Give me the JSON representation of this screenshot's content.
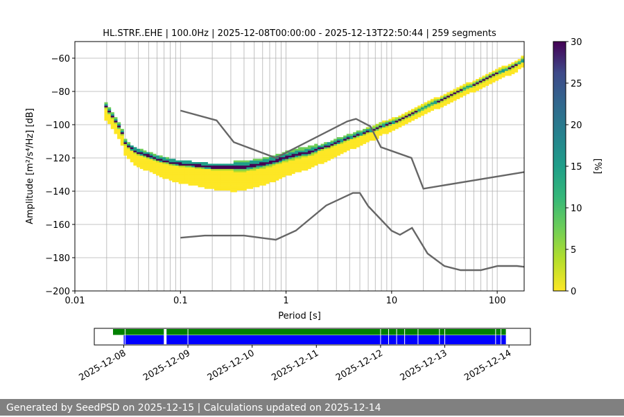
{
  "chart_data": {
    "type": "heatmap",
    "title": "HL.STRF..EHE | 100.0Hz | 2025-12-08T00:00:00 - 2025-12-13T22:50:44 | 259 segments",
    "xlabel": "Period [s]",
    "ylabel": "Amplitude [m²/s⁴/Hz] [dB]",
    "x_scale": "log",
    "xlim": [
      0.01,
      180
    ],
    "ylim": [
      -200,
      -50
    ],
    "xticks": [
      {
        "v": 0.01,
        "label": "0.01"
      },
      {
        "v": 0.1,
        "label": "0.1"
      },
      {
        "v": 1,
        "label": "1"
      },
      {
        "v": 10,
        "label": "10"
      },
      {
        "v": 100,
        "label": "100"
      }
    ],
    "yticks": [
      -60,
      -80,
      -100,
      -120,
      -140,
      -160,
      -180,
      -200
    ],
    "grid": true,
    "colorbar": {
      "label": "[%]",
      "min": 0,
      "max": 30,
      "ticks": [
        0,
        5,
        10,
        15,
        20,
        25,
        30
      ],
      "colormap": "viridis_r"
    },
    "psd_mode_curve": [
      [
        0.019,
        -87
      ],
      [
        0.02,
        -90
      ],
      [
        0.022,
        -94
      ],
      [
        0.025,
        -99
      ],
      [
        0.028,
        -105
      ],
      [
        0.03,
        -111
      ],
      [
        0.035,
        -115
      ],
      [
        0.04,
        -117
      ],
      [
        0.05,
        -119
      ],
      [
        0.06,
        -121
      ],
      [
        0.07,
        -122
      ],
      [
        0.08,
        -123
      ],
      [
        0.1,
        -124
      ],
      [
        0.15,
        -125
      ],
      [
        0.2,
        -126
      ],
      [
        0.3,
        -126
      ],
      [
        0.4,
        -126
      ],
      [
        0.5,
        -125
      ],
      [
        0.6,
        -124
      ],
      [
        0.7,
        -123
      ],
      [
        0.8,
        -122
      ],
      [
        1.0,
        -120
      ],
      [
        1.3,
        -118
      ],
      [
        1.6,
        -117
      ],
      [
        2.0,
        -115
      ],
      [
        2.5,
        -113
      ],
      [
        3.0,
        -111
      ],
      [
        4.0,
        -108
      ],
      [
        5.0,
        -106
      ],
      [
        6.0,
        -104
      ],
      [
        7.0,
        -103
      ],
      [
        8.0,
        -101
      ],
      [
        10,
        -99
      ],
      [
        12,
        -97
      ],
      [
        15,
        -94
      ],
      [
        20,
        -90
      ],
      [
        25,
        -87
      ],
      [
        30,
        -85
      ],
      [
        40,
        -81
      ],
      [
        50,
        -78
      ],
      [
        60,
        -76
      ],
      [
        70,
        -74
      ],
      [
        80,
        -72
      ],
      [
        100,
        -69
      ],
      [
        120,
        -67
      ],
      [
        150,
        -64
      ],
      [
        180,
        -61
      ]
    ],
    "nhnm": [
      [
        0.1,
        -91.5
      ],
      [
        0.22,
        -97.4
      ],
      [
        0.32,
        -110.5
      ],
      [
        0.8,
        -120
      ],
      [
        3.8,
        -98
      ],
      [
        4.6,
        -96.5
      ],
      [
        6.3,
        -101
      ],
      [
        7.9,
        -113.5
      ],
      [
        15.4,
        -120
      ],
      [
        20,
        -138.5
      ],
      [
        180,
        -128.5
      ]
    ],
    "nlnm": [
      [
        0.1,
        -168
      ],
      [
        0.17,
        -166.7
      ],
      [
        0.4,
        -166.7
      ],
      [
        0.8,
        -169.2
      ],
      [
        1.24,
        -163.7
      ],
      [
        2.4,
        -148.6
      ],
      [
        4.3,
        -141.1
      ],
      [
        5.0,
        -141.1
      ],
      [
        6.0,
        -149
      ],
      [
        10,
        -163.8
      ],
      [
        12,
        -166.2
      ],
      [
        15.6,
        -162.1
      ],
      [
        21.9,
        -177.5
      ],
      [
        31.6,
        -185
      ],
      [
        45,
        -187.5
      ],
      [
        70,
        -187.5
      ],
      [
        101,
        -185
      ],
      [
        154,
        -185
      ],
      [
        180,
        -185.5
      ]
    ],
    "timeline": {
      "tick_labels": [
        "2025-12-08",
        "2025-12-09",
        "2025-12-10",
        "2025-12-11",
        "2025-12-12",
        "2025-12-13",
        "2025-12-14"
      ],
      "range": [
        "2025-12-07T13:00",
        "2025-12-14T08:00"
      ],
      "data_segments": [
        [
          "2025-12-07T20:00",
          "2025-12-08T15:00"
        ],
        [
          "2025-12-08T16:00",
          "2025-12-13T22:50"
        ]
      ],
      "psd_segments": [
        [
          "2025-12-08T00:00",
          "2025-12-08T15:00"
        ],
        [
          "2025-12-08T16:00",
          "2025-12-13T22:50"
        ]
      ],
      "gaps": [
        "2025-12-08T00:30",
        "2025-12-09T00:00",
        "2025-12-12T00:00",
        "2025-12-12T03:00",
        "2025-12-12T06:00",
        "2025-12-12T09:00",
        "2025-12-12T14:00",
        "2025-12-12T22:00",
        "2025-12-13T00:00",
        "2025-12-13T19:00",
        "2025-12-13T21:00"
      ],
      "colors": {
        "data": "#008000",
        "psd": "#0000ff"
      }
    }
  },
  "footer": {
    "text": "Generated by SeedPSD on 2025-12-15 | Calculations updated on 2025-12-14"
  }
}
